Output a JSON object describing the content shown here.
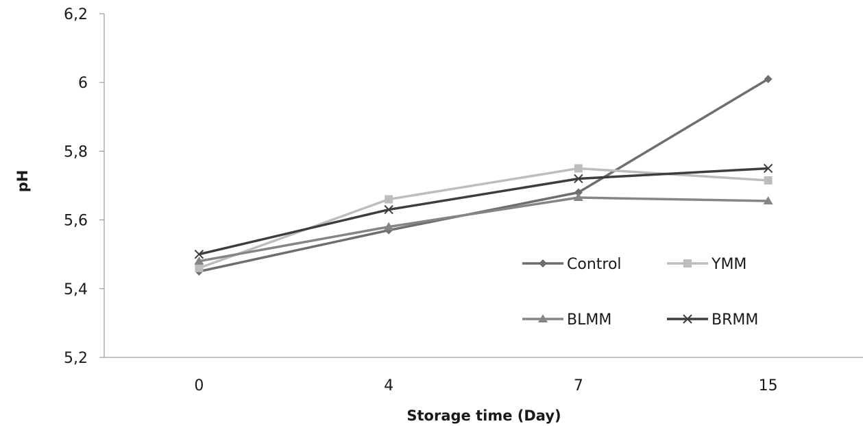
{
  "chart_data": {
    "type": "line",
    "categories": [
      "0",
      "4",
      "7",
      "15"
    ],
    "series": [
      {
        "name": "Control",
        "values": [
          5.45,
          5.57,
          5.68,
          6.01
        ],
        "color": "#6e6e6e",
        "marker": "diamond"
      },
      {
        "name": "YMM",
        "values": [
          5.46,
          5.66,
          5.75,
          5.715
        ],
        "color": "#bdbdbd",
        "marker": "square"
      },
      {
        "name": "BLMM",
        "values": [
          5.48,
          5.58,
          5.665,
          5.655
        ],
        "color": "#858585",
        "marker": "triangle"
      },
      {
        "name": "BRMM",
        "values": [
          5.5,
          5.63,
          5.72,
          5.75
        ],
        "color": "#3d3d3d",
        "marker": "x"
      }
    ],
    "xlabel": "Storage time (Day)",
    "ylabel": "pH",
    "ylim": [
      5.2,
      6.2
    ],
    "yticks": [
      "5,2",
      "5,4",
      "5,6",
      "5,8",
      "6",
      "6,2"
    ],
    "grid": false,
    "legend_position": "bottom-right"
  }
}
